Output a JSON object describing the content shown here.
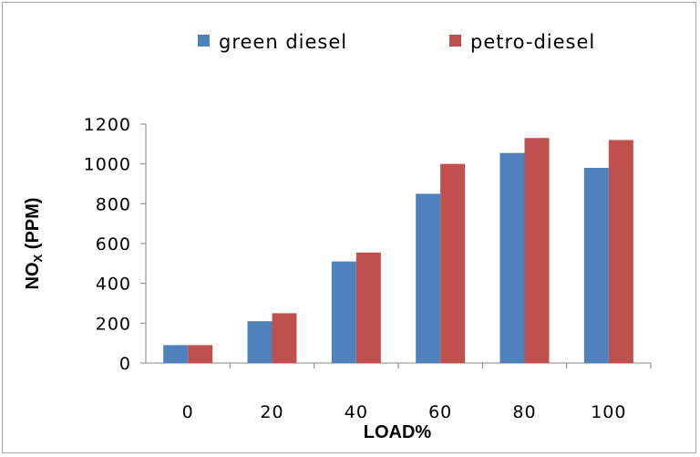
{
  "chart_data": {
    "type": "bar",
    "title": "",
    "xlabel": "LOAD%",
    "ylabel_main": "NO",
    "ylabel_sub": "X",
    "ylabel_rest": " (PPM)",
    "categories": [
      "0",
      "20",
      "40",
      "60",
      "80",
      "100"
    ],
    "series": [
      {
        "name": "green diesel",
        "color": "#4f81bd",
        "values": [
          90,
          210,
          510,
          850,
          1055,
          980
        ]
      },
      {
        "name": "petro-diesel",
        "color": "#c0504d",
        "values": [
          90,
          250,
          555,
          1000,
          1130,
          1120
        ]
      }
    ],
    "ylim": [
      0,
      1200
    ],
    "yticks": [
      "0",
      "200",
      "400",
      "600",
      "800",
      "1000",
      "1200"
    ],
    "grid": false,
    "legend_position": "top"
  }
}
